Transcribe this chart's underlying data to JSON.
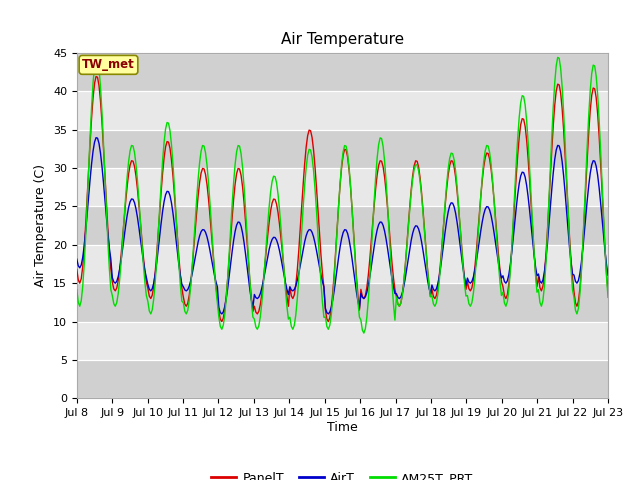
{
  "title": "Air Temperature",
  "ylabel": "Air Temperature (C)",
  "xlabel": "Time",
  "annotation": "TW_met",
  "ylim": [
    0,
    45
  ],
  "yticks": [
    0,
    5,
    10,
    15,
    20,
    25,
    30,
    35,
    40,
    45
  ],
  "x_tick_labels": [
    "Jul 8",
    "Jul 9",
    "Jul 10",
    "Jul 11",
    "Jul 12",
    "Jul 13",
    "Jul 14",
    "Jul 15",
    "Jul 16",
    "Jul 17",
    "Jul 18",
    "Jul 19",
    "Jul 20",
    "Jul 21",
    "Jul 22",
    "Jul 23"
  ],
  "legend_labels": [
    "PanelT",
    "AirT",
    "AM25T_PRT"
  ],
  "legend_colors": [
    "#dd0000",
    "#0000cc",
    "#00dd00"
  ],
  "title_fontsize": 11,
  "label_fontsize": 9,
  "tick_fontsize": 8,
  "n_days": 15,
  "hours_per_day": 24,
  "day_peaks_panel": [
    42,
    31,
    33.5,
    30,
    30,
    26,
    35,
    32.5,
    31,
    31,
    31,
    32,
    36.5,
    41,
    40.5
  ],
  "day_troughs_panel": [
    15,
    14,
    13,
    12,
    10,
    11,
    13,
    10,
    13,
    12,
    13,
    14,
    13,
    14,
    12
  ],
  "day_peaks_air": [
    34,
    26,
    27,
    22,
    23,
    21,
    22,
    22,
    23,
    22.5,
    25.5,
    25,
    29.5,
    33,
    31
  ],
  "day_troughs_air": [
    17,
    15,
    14,
    14,
    11,
    13,
    14,
    11,
    13,
    13,
    14,
    15,
    15,
    15,
    15
  ],
  "day_peaks_am25": [
    44.5,
    33,
    36,
    33,
    33,
    29,
    32.5,
    33,
    34,
    30.5,
    32,
    33,
    39.5,
    44.5,
    43.5
  ],
  "day_troughs_am25": [
    12,
    12,
    11,
    11,
    9,
    9,
    9,
    9,
    8.5,
    12,
    12,
    12,
    12,
    12,
    11
  ],
  "bg_light": "#e8e8e8",
  "bg_dark": "#d0d0d0",
  "grid_color": "#f0f0f0"
}
